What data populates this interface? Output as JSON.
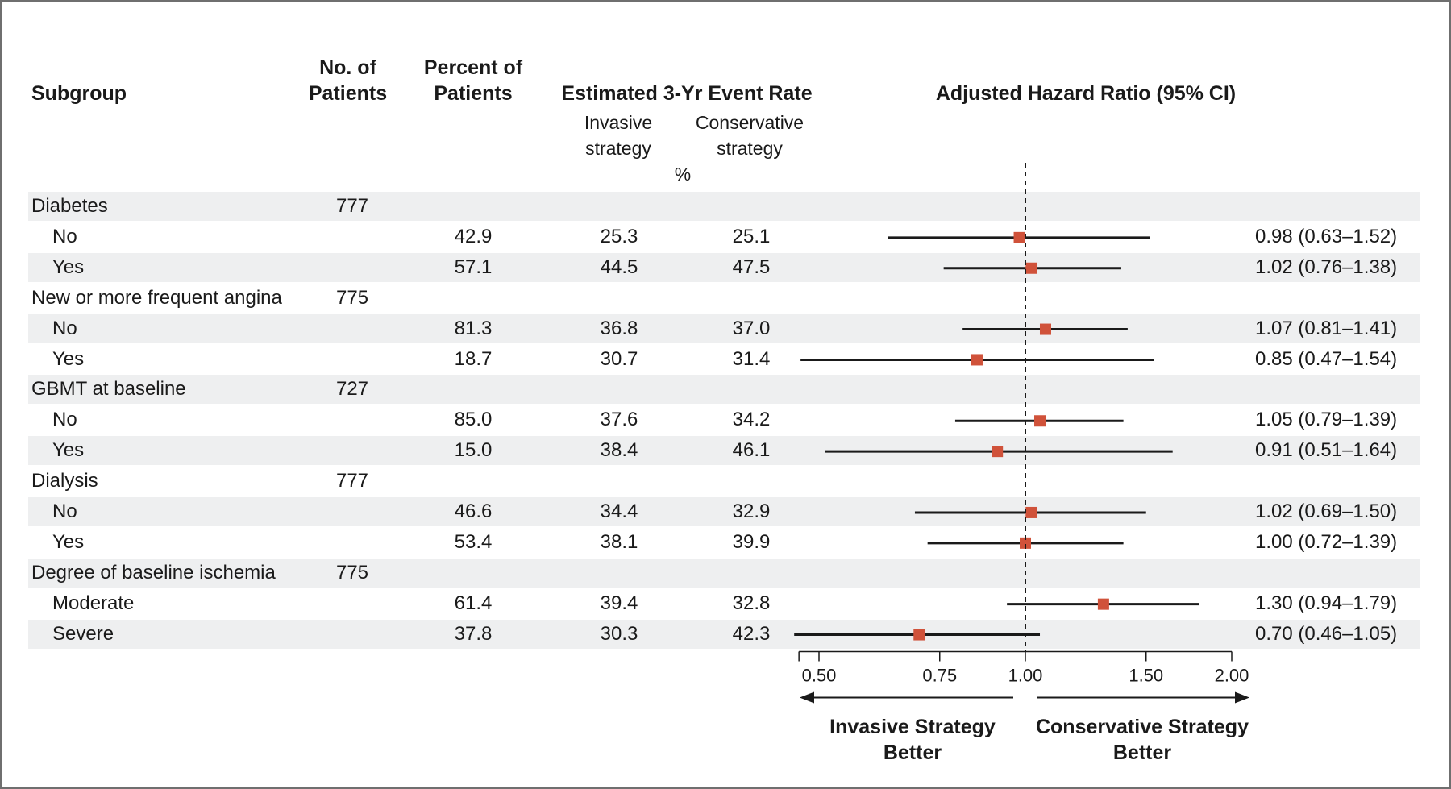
{
  "headers": {
    "subgroup": "Subgroup",
    "no_patients_line1": "No. of",
    "no_patients_line2": "Patients",
    "pct_patients_line1": "Percent of",
    "pct_patients_line2": "Patients",
    "event_rate": "Estimated 3-Yr Event Rate",
    "invasive_line1": "Invasive",
    "invasive_line2": "strategy",
    "conservative_line1": "Conservative",
    "conservative_line2": "strategy",
    "percent_unit": "%",
    "hazard_ratio": "Adjusted Hazard Ratio (95% CI)"
  },
  "direction_labels": {
    "left_line1": "Invasive Strategy",
    "left_line2": "Better",
    "right_line1": "Conservative Strategy",
    "right_line2": "Better"
  },
  "colors": {
    "marker": "#d0523a",
    "row_shade": "#eeeff0",
    "line": "#1a1a1a"
  },
  "chart_data": {
    "type": "forest",
    "scale": "log",
    "xlim": [
      0.47,
      2.0
    ],
    "ticks": [
      "0.50",
      "0.75",
      "1.00",
      "1.50",
      "2.00"
    ],
    "reference_line": 1.0,
    "rows": [
      {
        "label": "Diabetes",
        "is_group": true,
        "n": "777"
      },
      {
        "label": "No",
        "is_group": false,
        "pct": "42.9",
        "inv": "25.3",
        "cons": "25.1",
        "hr": 0.98,
        "lo": 0.63,
        "hi": 1.52,
        "hr_text": "0.98 (0.63–1.52)"
      },
      {
        "label": "Yes",
        "is_group": false,
        "pct": "57.1",
        "inv": "44.5",
        "cons": "47.5",
        "hr": 1.02,
        "lo": 0.76,
        "hi": 1.38,
        "hr_text": "1.02 (0.76–1.38)"
      },
      {
        "label": "New or more frequent angina",
        "is_group": true,
        "n": "775"
      },
      {
        "label": "No",
        "is_group": false,
        "pct": "81.3",
        "inv": "36.8",
        "cons": "37.0",
        "hr": 1.07,
        "lo": 0.81,
        "hi": 1.41,
        "hr_text": "1.07 (0.81–1.41)"
      },
      {
        "label": "Yes",
        "is_group": false,
        "pct": "18.7",
        "inv": "30.7",
        "cons": "31.4",
        "hr": 0.85,
        "lo": 0.47,
        "hi": 1.54,
        "hr_text": "0.85 (0.47–1.54)"
      },
      {
        "label": "GBMT at baseline",
        "is_group": true,
        "n": "727"
      },
      {
        "label": "No",
        "is_group": false,
        "pct": "85.0",
        "inv": "37.6",
        "cons": "34.2",
        "hr": 1.05,
        "lo": 0.79,
        "hi": 1.39,
        "hr_text": "1.05 (0.79–1.39)"
      },
      {
        "label": "Yes",
        "is_group": false,
        "pct": "15.0",
        "inv": "38.4",
        "cons": "46.1",
        "hr": 0.91,
        "lo": 0.51,
        "hi": 1.64,
        "hr_text": "0.91 (0.51–1.64)"
      },
      {
        "label": "Dialysis",
        "is_group": true,
        "n": "777"
      },
      {
        "label": "No",
        "is_group": false,
        "pct": "46.6",
        "inv": "34.4",
        "cons": "32.9",
        "hr": 1.02,
        "lo": 0.69,
        "hi": 1.5,
        "hr_text": "1.02 (0.69–1.50)"
      },
      {
        "label": "Yes",
        "is_group": false,
        "pct": "53.4",
        "inv": "38.1",
        "cons": "39.9",
        "hr": 1.0,
        "lo": 0.72,
        "hi": 1.39,
        "hr_text": "1.00 (0.72–1.39)"
      },
      {
        "label": "Degree of baseline ischemia",
        "is_group": true,
        "n": "775"
      },
      {
        "label": "Moderate",
        "is_group": false,
        "pct": "61.4",
        "inv": "39.4",
        "cons": "32.8",
        "hr": 1.3,
        "lo": 0.94,
        "hi": 1.79,
        "hr_text": "1.30 (0.94–1.79)"
      },
      {
        "label": "Severe",
        "is_group": false,
        "pct": "37.8",
        "inv": "30.3",
        "cons": "42.3",
        "hr": 0.7,
        "lo": 0.46,
        "hi": 1.05,
        "hr_text": "0.70 (0.46–1.05)"
      }
    ]
  }
}
